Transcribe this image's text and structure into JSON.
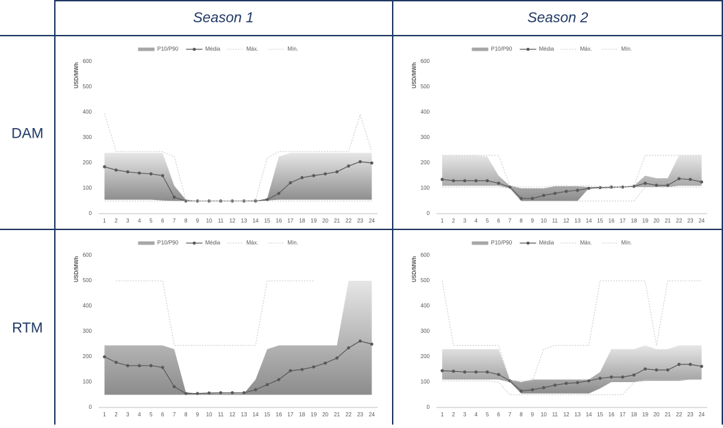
{
  "header": {
    "columns": [
      "Season 1",
      "Season 2"
    ],
    "rows": [
      "DAM",
      "RTM"
    ]
  },
  "chart_data": [
    {
      "type": "line",
      "ylabel": "USD/MWh",
      "ylim": [
        0,
        600
      ],
      "yticks": [
        0,
        100,
        200,
        300,
        400,
        500,
        600
      ],
      "categories": [
        1,
        2,
        3,
        4,
        5,
        6,
        7,
        8,
        9,
        10,
        11,
        12,
        13,
        14,
        15,
        16,
        17,
        18,
        19,
        20,
        21,
        22,
        23,
        24
      ],
      "series": [
        {
          "name": "P10/P90",
          "color": "#a6a6a6",
          "low": [
            55,
            55,
            55,
            55,
            55,
            52,
            50,
            50,
            50,
            50,
            50,
            50,
            50,
            50,
            52,
            55,
            55,
            55,
            55,
            55,
            55,
            55,
            55,
            55
          ],
          "high": [
            240,
            240,
            240,
            240,
            240,
            240,
            110,
            55,
            50,
            50,
            50,
            50,
            50,
            50,
            60,
            225,
            240,
            240,
            240,
            240,
            240,
            240,
            240,
            240
          ]
        },
        {
          "name": "Média",
          "color": "#595959",
          "values": [
            185,
            172,
            165,
            160,
            157,
            150,
            65,
            50,
            50,
            50,
            50,
            50,
            50,
            50,
            55,
            80,
            122,
            142,
            150,
            157,
            165,
            188,
            205,
            200
          ]
        },
        {
          "name": "Máx.",
          "color": "#c8c8c8",
          "values": [
            395,
            245,
            245,
            245,
            245,
            245,
            225,
            55,
            50,
            50,
            50,
            50,
            50,
            55,
            220,
            245,
            245,
            245,
            245,
            245,
            245,
            245,
            390,
            245
          ]
        },
        {
          "name": "Mín.",
          "color": "#c8c8c8",
          "values": [
            50,
            50,
            50,
            50,
            50,
            50,
            50,
            50,
            50,
            50,
            50,
            50,
            50,
            50,
            50,
            50,
            50,
            50,
            50,
            50,
            50,
            50,
            50,
            50
          ]
        }
      ]
    },
    {
      "type": "line",
      "ylabel": "USD/MWh",
      "ylim": [
        0,
        600
      ],
      "yticks": [
        0,
        100,
        200,
        300,
        400,
        500,
        600
      ],
      "categories": [
        1,
        2,
        3,
        4,
        5,
        6,
        7,
        8,
        9,
        10,
        11,
        12,
        13,
        14,
        15,
        16,
        17,
        18,
        19,
        20,
        21,
        22,
        23,
        24
      ],
      "series": [
        {
          "name": "P10/P90",
          "color": "#a6a6a6",
          "low": [
            110,
            110,
            110,
            110,
            110,
            110,
            100,
            50,
            50,
            50,
            50,
            50,
            50,
            100,
            100,
            100,
            105,
            105,
            105,
            105,
            105,
            110,
            110,
            110
          ],
          "high": [
            230,
            230,
            230,
            230,
            225,
            150,
            110,
            100,
            100,
            100,
            108,
            108,
            108,
            105,
            105,
            105,
            108,
            110,
            150,
            140,
            140,
            230,
            230,
            230
          ]
        },
        {
          "name": "Média",
          "color": "#595959",
          "values": [
            135,
            130,
            130,
            130,
            130,
            120,
            105,
            60,
            60,
            72,
            80,
            88,
            92,
            100,
            103,
            105,
            105,
            108,
            120,
            112,
            112,
            138,
            135,
            125
          ]
        },
        {
          "name": "Máx.",
          "color": "#c8c8c8",
          "values": [
            230,
            230,
            230,
            230,
            230,
            230,
            110,
            105,
            105,
            105,
            110,
            110,
            110,
            110,
            105,
            105,
            105,
            110,
            230,
            230,
            230,
            230,
            230,
            230
          ]
        },
        {
          "name": "Mín.",
          "color": "#c8c8c8",
          "values": [
            105,
            105,
            105,
            105,
            105,
            105,
            100,
            50,
            50,
            50,
            50,
            50,
            50,
            50,
            50,
            50,
            50,
            50,
            105,
            105,
            105,
            105,
            105,
            105
          ]
        }
      ]
    },
    {
      "type": "line",
      "ylabel": "USD/MWh",
      "ylim": [
        0,
        600
      ],
      "yticks": [
        0,
        100,
        200,
        300,
        400,
        500,
        600
      ],
      "categories": [
        1,
        2,
        3,
        4,
        5,
        6,
        7,
        8,
        9,
        10,
        11,
        12,
        13,
        14,
        15,
        16,
        17,
        18,
        19,
        20,
        21,
        22,
        23,
        24
      ],
      "series": [
        {
          "name": "P10/P90",
          "color": "#a6a6a6",
          "low": [
            50,
            50,
            50,
            50,
            50,
            50,
            50,
            50,
            50,
            50,
            50,
            50,
            50,
            50,
            50,
            50,
            50,
            50,
            50,
            50,
            50,
            50,
            50,
            50
          ],
          "high": [
            245,
            245,
            245,
            245,
            245,
            245,
            230,
            60,
            55,
            55,
            55,
            55,
            55,
            110,
            230,
            245,
            245,
            245,
            245,
            245,
            245,
            500,
            500,
            500
          ]
        },
        {
          "name": "Média",
          "color": "#595959",
          "values": [
            200,
            178,
            165,
            165,
            165,
            158,
            82,
            55,
            55,
            57,
            58,
            58,
            58,
            70,
            90,
            110,
            145,
            150,
            160,
            175,
            195,
            235,
            262,
            250
          ]
        },
        {
          "name": "Máx.",
          "color": "#c8c8c8",
          "values": [
            null,
            500,
            500,
            500,
            500,
            500,
            245,
            245,
            245,
            245,
            245,
            245,
            245,
            245,
            500,
            500,
            500,
            500,
            500,
            null,
            null,
            null,
            null,
            null
          ]
        },
        {
          "name": "Mín.",
          "color": "#c8c8c8",
          "values": [
            50,
            50,
            50,
            50,
            50,
            50,
            50,
            50,
            50,
            50,
            50,
            50,
            50,
            50,
            50,
            50,
            50,
            50,
            50,
            50,
            50,
            50,
            50,
            50
          ]
        }
      ]
    },
    {
      "type": "line",
      "ylabel": "USD/MWh",
      "ylim": [
        0,
        600
      ],
      "yticks": [
        0,
        100,
        200,
        300,
        400,
        500,
        600
      ],
      "categories": [
        1,
        2,
        3,
        4,
        5,
        6,
        7,
        8,
        9,
        10,
        11,
        12,
        13,
        14,
        15,
        16,
        17,
        18,
        19,
        20,
        21,
        22,
        23,
        24
      ],
      "series": [
        {
          "name": "P10/P90",
          "color": "#a6a6a6",
          "low": [
            110,
            110,
            110,
            110,
            110,
            110,
            100,
            55,
            55,
            55,
            55,
            55,
            55,
            55,
            75,
            100,
            100,
            100,
            105,
            105,
            105,
            105,
            110,
            110
          ],
          "high": [
            230,
            230,
            230,
            230,
            230,
            230,
            110,
            100,
            110,
            110,
            110,
            110,
            110,
            110,
            140,
            230,
            230,
            230,
            245,
            230,
            230,
            245,
            245,
            245
          ]
        },
        {
          "name": "Média",
          "color": "#595959",
          "values": [
            145,
            143,
            140,
            140,
            140,
            130,
            105,
            65,
            70,
            78,
            88,
            95,
            98,
            105,
            115,
            120,
            120,
            128,
            152,
            148,
            148,
            170,
            170,
            162
          ]
        },
        {
          "name": "Máx.",
          "color": "#c8c8c8",
          "values": [
            500,
            245,
            245,
            245,
            245,
            245,
            105,
            105,
            105,
            230,
            245,
            245,
            245,
            245,
            500,
            500,
            500,
            500,
            500,
            245,
            500,
            500,
            500,
            500
          ]
        },
        {
          "name": "Mín.",
          "color": "#c8c8c8",
          "values": [
            105,
            105,
            105,
            105,
            105,
            100,
            50,
            50,
            50,
            50,
            50,
            50,
            50,
            50,
            50,
            50,
            50,
            100,
            110,
            110,
            110,
            110,
            110,
            110
          ]
        }
      ]
    }
  ]
}
